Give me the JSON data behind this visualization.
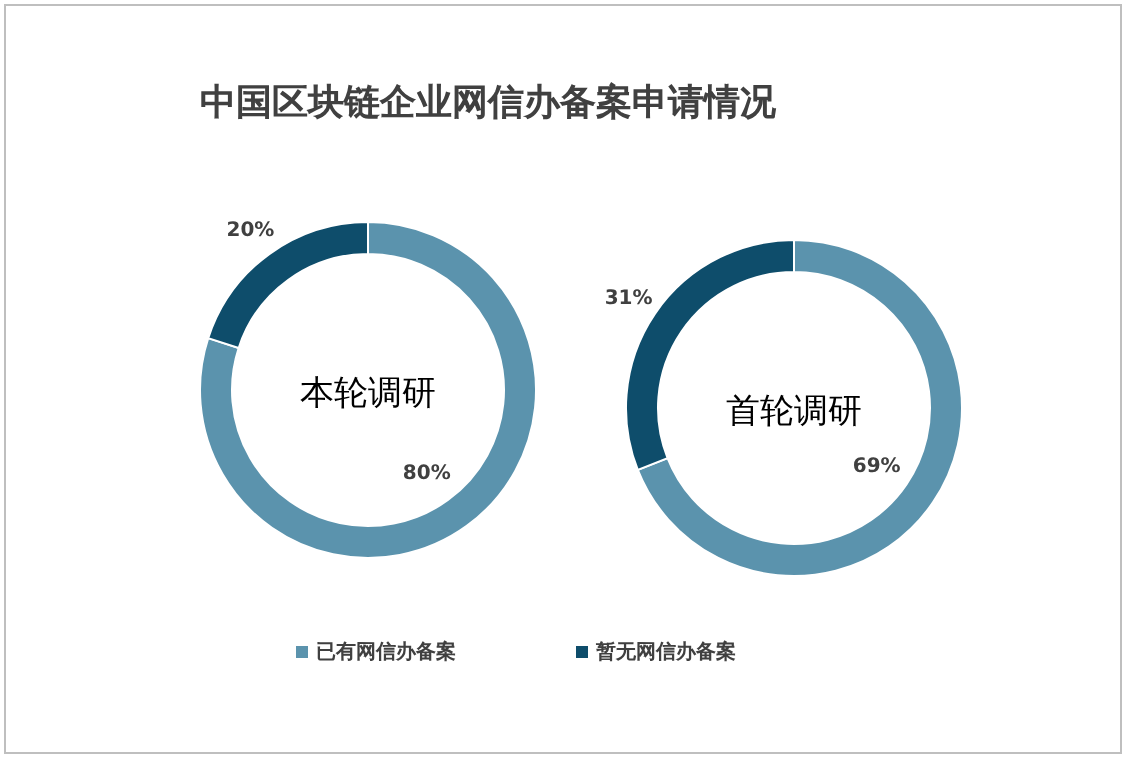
{
  "chart_data": [
    {
      "type": "donut",
      "title": "中国区块链企业网信办备案申请情况",
      "categories": [
        "已有网信办备案",
        "暂无网信办备案"
      ],
      "values": [
        80,
        20
      ],
      "value_labels": [
        "80%",
        "20%"
      ],
      "colors": [
        "#5b93ad",
        "#0e4d6b"
      ],
      "annotations": [
        "本轮调研"
      ],
      "legend": "bottom"
    },
    {
      "type": "donut",
      "categories": [
        null,
        null
      ],
      "values": [
        69,
        31
      ],
      "value_labels": [
        "69%",
        "31%"
      ],
      "colors": [
        "#5b93ad",
        "#0e4d6b"
      ],
      "annotations": [
        "首轮调研"
      ]
    }
  ]
}
